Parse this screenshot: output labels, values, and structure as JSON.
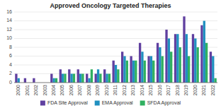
{
  "chart_data": {
    "type": "bar",
    "title": "Approved Oncology Targeted Therapies",
    "categories": [
      "2000",
      "2001",
      "2002",
      "2003",
      "2004",
      "2005",
      "2006",
      "2007",
      "2008",
      "2009",
      "2010",
      "2011",
      "2012",
      "2013",
      "2014",
      "2015",
      "2016",
      "2017",
      "2018",
      "2019",
      "2020",
      "2021",
      "2022"
    ],
    "series": [
      {
        "name": "FDA Site Approval",
        "color": "#6040a0",
        "values": [
          2,
          1,
          1,
          0,
          2,
          3,
          3,
          3,
          2,
          2,
          3,
          5,
          7,
          6,
          9,
          6,
          9,
          12,
          11,
          15,
          11,
          13,
          7
        ]
      },
      {
        "name": "EMA Approval",
        "color": "#2090c0",
        "values": [
          1,
          0,
          0,
          0,
          1,
          2,
          2,
          2,
          1,
          3,
          2,
          4,
          6,
          5,
          7,
          6,
          8,
          10,
          11,
          11,
          10,
          14,
          6
        ]
      },
      {
        "name": "SFDA Approval",
        "color": "#30b060",
        "values": [
          0,
          0,
          0,
          0,
          1,
          2,
          2,
          2,
          3,
          2,
          2,
          3,
          5,
          5,
          5,
          5,
          6,
          7,
          8,
          6,
          8,
          9,
          1
        ]
      }
    ],
    "ylim": [
      0,
      16
    ],
    "yticks": [
      0,
      2,
      4,
      6,
      8,
      10,
      12,
      14,
      16
    ],
    "grid": true,
    "legend": "bottom"
  }
}
